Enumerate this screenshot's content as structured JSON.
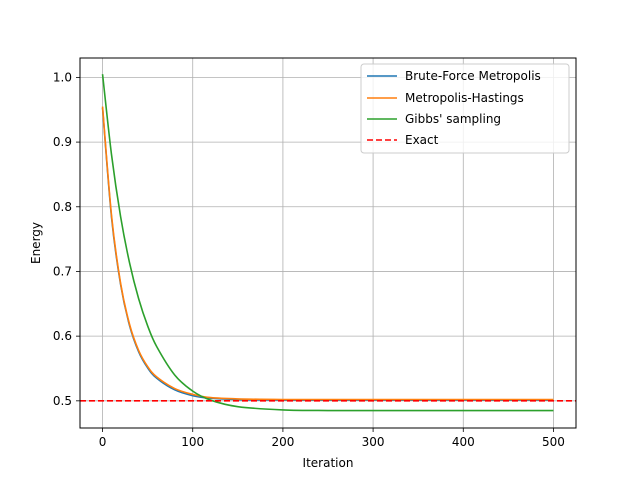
{
  "chart_data": {
    "type": "line",
    "xlabel": "Iteration",
    "ylabel": "Energy",
    "xlim": [
      -25,
      525
    ],
    "ylim": [
      0.458,
      1.03
    ],
    "xticks": [
      0,
      100,
      200,
      300,
      400,
      500
    ],
    "yticks": [
      0.5,
      0.6,
      0.7,
      0.8,
      0.9,
      1.0
    ],
    "xtick_labels": [
      "0",
      "100",
      "200",
      "300",
      "400",
      "500"
    ],
    "ytick_labels": [
      "0.5",
      "0.6",
      "0.7",
      "0.8",
      "0.9",
      "1.0"
    ],
    "grid": true,
    "legend_position": "top-right",
    "x": [
      0,
      10,
      20,
      30,
      40,
      50,
      60,
      80,
      100,
      120,
      150,
      200,
      250,
      300,
      350,
      400,
      450,
      500
    ],
    "series": [
      {
        "name": "Brute-Force Metropolis",
        "color": "#1f77b4",
        "style": "solid",
        "values": [
          0.953,
          0.783,
          0.68,
          0.616,
          0.576,
          0.551,
          0.535,
          0.517,
          0.508,
          0.504,
          0.502,
          0.501,
          0.501,
          0.501,
          0.501,
          0.501,
          0.501,
          0.501
        ]
      },
      {
        "name": "Metropolis-Hastings",
        "color": "#ff7f0e",
        "style": "solid",
        "values": [
          0.955,
          0.786,
          0.682,
          0.618,
          0.578,
          0.553,
          0.537,
          0.519,
          0.51,
          0.505,
          0.503,
          0.502,
          0.502,
          0.502,
          0.502,
          0.502,
          0.502,
          0.502
        ]
      },
      {
        "name": "Gibbs' sampling",
        "color": "#2ca02c",
        "style": "solid",
        "values": [
          1.005,
          0.88,
          0.785,
          0.713,
          0.658,
          0.616,
          0.584,
          0.54,
          0.515,
          0.501,
          0.491,
          0.486,
          0.485,
          0.485,
          0.485,
          0.485,
          0.485,
          0.485
        ]
      }
    ],
    "reference_lines": [
      {
        "name": "Exact",
        "color": "#ff0000",
        "style": "dashed",
        "y": 0.5
      }
    ]
  }
}
